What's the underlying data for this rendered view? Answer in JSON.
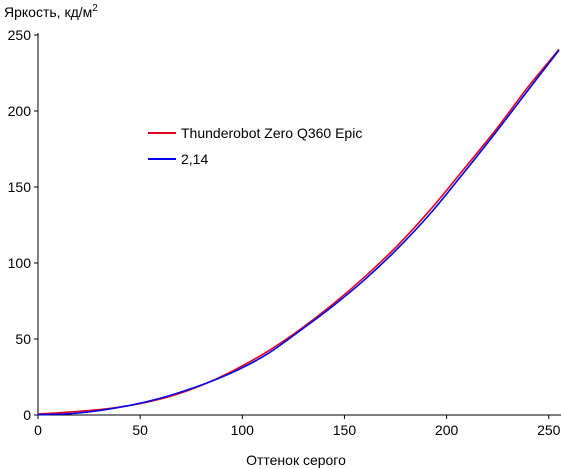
{
  "chart_data": {
    "type": "line",
    "title": "",
    "ylabel": "Яркость, кд/м",
    "ylabel_sup": "2",
    "xlabel": "Оттенок серого",
    "xlim": [
      0,
      255
    ],
    "ylim": [
      0,
      250
    ],
    "x_ticks": [
      0,
      50,
      100,
      150,
      200,
      250
    ],
    "y_ticks": [
      0,
      50,
      100,
      150,
      200,
      250
    ],
    "x_tick_labels": [
      "0",
      "50",
      "100",
      "150",
      "200",
      "250"
    ],
    "y_tick_labels": [
      "0",
      "50",
      "100",
      "150",
      "200",
      "250"
    ],
    "grid": false,
    "legend_position": "upper-left inside plot",
    "series": [
      {
        "name": "Thunderobot Zero Q360 Epic",
        "color": "#e0001b",
        "x": [
          0,
          16,
          32,
          48,
          64,
          80,
          96,
          112,
          128,
          144,
          160,
          176,
          192,
          208,
          224,
          240,
          255
        ],
        "y": [
          0.6,
          2.0,
          3.8,
          7.0,
          12.0,
          19.5,
          29.5,
          41.5,
          56.0,
          72.5,
          91.0,
          111.5,
          135.0,
          161.0,
          187.5,
          216.0,
          240.5
        ]
      },
      {
        "name": "2,14",
        "color": "#0000ee",
        "x": [
          0,
          16,
          32,
          48,
          64,
          80,
          96,
          112,
          128,
          144,
          160,
          176,
          192,
          208,
          224,
          240,
          255
        ],
        "y": [
          0.2,
          0.9,
          3.3,
          7.2,
          12.6,
          19.7,
          28.5,
          39.9,
          55.2,
          71.3,
          89.2,
          109.5,
          132.5,
          158.7,
          185.8,
          213.9,
          240.0
        ]
      }
    ]
  }
}
